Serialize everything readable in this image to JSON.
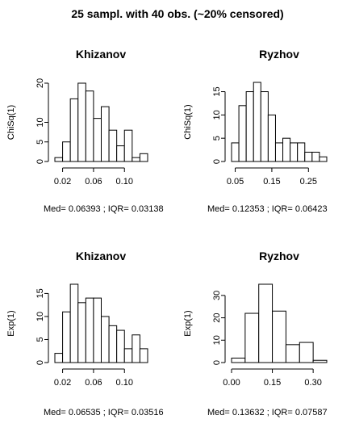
{
  "figure": {
    "title": "25 sampl. with 40 obs. (~20% censored)"
  },
  "chart_data": [
    {
      "type": "bar",
      "title": "Khizanov",
      "ylabel": "ChiSq(1)",
      "xlabel": "",
      "bin_edges": [
        0.01,
        0.02,
        0.03,
        0.04,
        0.05,
        0.06,
        0.07,
        0.08,
        0.09,
        0.1,
        0.11,
        0.12,
        0.13
      ],
      "values": [
        1,
        5,
        16,
        20,
        18,
        11,
        14,
        8,
        4,
        8,
        1,
        2
      ],
      "xlim": [
        0.01,
        0.13
      ],
      "ylim": [
        0,
        20
      ],
      "xticks": [
        0.02,
        0.06,
        0.1
      ],
      "xtick_labels": [
        "0.02",
        "0.06",
        "0.10"
      ],
      "yticks": [
        0,
        5,
        10,
        20
      ],
      "ytick_labels": [
        "0",
        "5",
        "10",
        "20"
      ],
      "stats_label": "Med= 0.06393 ; IQR= 0.03138"
    },
    {
      "type": "bar",
      "title": "Ryzhov",
      "ylabel": "ChiSq(1)",
      "xlabel": "",
      "bin_edges": [
        0.04,
        0.06,
        0.08,
        0.1,
        0.12,
        0.14,
        0.16,
        0.18,
        0.2,
        0.22,
        0.24,
        0.26,
        0.28,
        0.3
      ],
      "values": [
        4,
        12,
        15,
        17,
        15,
        10,
        4,
        5,
        4,
        4,
        2,
        2,
        1
      ],
      "xlim": [
        0.04,
        0.3
      ],
      "ylim": [
        0,
        17
      ],
      "xticks": [
        0.05,
        0.15,
        0.25
      ],
      "xtick_labels": [
        "0.05",
        "0.15",
        "0.25"
      ],
      "yticks": [
        0,
        5,
        10,
        15
      ],
      "ytick_labels": [
        "0",
        "5",
        "10",
        "15"
      ],
      "stats_label": "Med= 0.12353 ; IQR= 0.06423"
    },
    {
      "type": "bar",
      "title": "Khizanov",
      "ylabel": "Exp(1)",
      "xlabel": "",
      "bin_edges": [
        0.01,
        0.02,
        0.03,
        0.04,
        0.05,
        0.06,
        0.07,
        0.08,
        0.09,
        0.1,
        0.11,
        0.12,
        0.13
      ],
      "values": [
        2,
        11,
        17,
        13,
        14,
        14,
        10,
        8,
        7,
        3,
        6,
        3
      ],
      "xlim": [
        0.01,
        0.13
      ],
      "ylim": [
        0,
        17
      ],
      "xticks": [
        0.02,
        0.06,
        0.1
      ],
      "xtick_labels": [
        "0.02",
        "0.06",
        "0.10"
      ],
      "yticks": [
        0,
        5,
        10,
        15
      ],
      "ytick_labels": [
        "0",
        "5",
        "10",
        "15"
      ],
      "stats_label": "Med= 0.06535 ; IQR= 0.03516"
    },
    {
      "type": "bar",
      "title": "Ryzhov",
      "ylabel": "Exp(1)",
      "xlabel": "",
      "bin_edges": [
        0.0,
        0.05,
        0.1,
        0.15,
        0.2,
        0.25,
        0.3,
        0.35
      ],
      "values": [
        2,
        22,
        35,
        23,
        8,
        9,
        1
      ],
      "xlim": [
        0.0,
        0.35
      ],
      "ylim": [
        0,
        35
      ],
      "xticks": [
        0.0,
        0.15,
        0.3
      ],
      "xtick_labels": [
        "0.00",
        "0.15",
        "0.30"
      ],
      "yticks": [
        0,
        10,
        20,
        30
      ],
      "ytick_labels": [
        "0",
        "10",
        "20",
        "30"
      ],
      "stats_label": "Med= 0.13632 ; IQR= 0.07587"
    }
  ]
}
